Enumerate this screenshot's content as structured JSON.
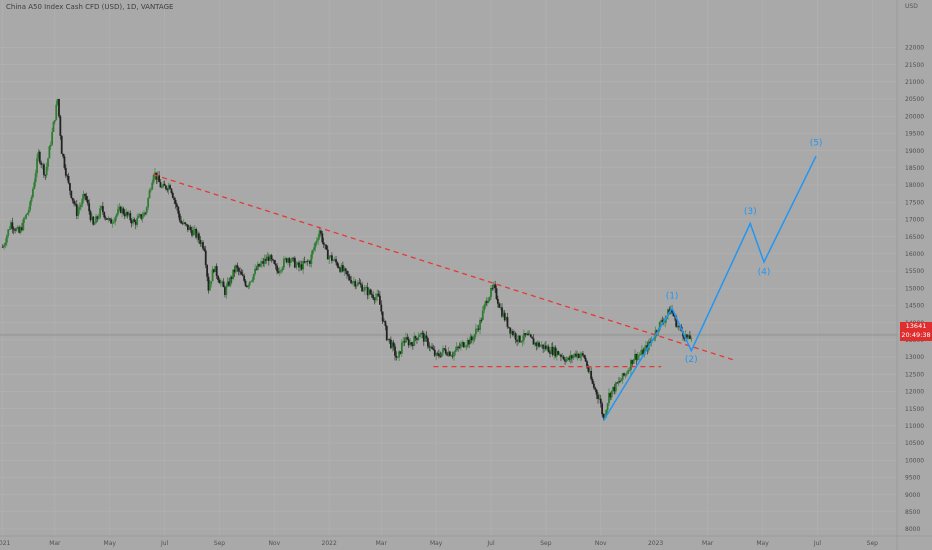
{
  "title": "China A50 Index Cash CFD (USD), 1D, VANTAGE",
  "currency_label": "USD",
  "price_badge": {
    "price": "13641",
    "countdown": "20:49:38",
    "color": "#e02d2d"
  },
  "colors": {
    "background": "#a9a9a9",
    "up_candle": "#2e7d32",
    "down_candle": "#222222",
    "trendline": "#e53935",
    "elliott": "#2196f3",
    "axis_text": "#505050"
  },
  "chart_data": {
    "type": "line",
    "title": "China A50 Index Cash CFD (USD), 1D, VANTAGE",
    "ylim": [
      7700,
      22500
    ],
    "y_ticks": [
      8000,
      8500,
      9000,
      9500,
      10000,
      10500,
      11000,
      11500,
      12000,
      12500,
      13000,
      13500,
      14000,
      14500,
      15000,
      15500,
      16000,
      16500,
      17000,
      17500,
      18000,
      18500,
      19000,
      19500,
      20000,
      20500,
      21000,
      21500,
      22000
    ],
    "x_ticks": [
      {
        "label": "2021",
        "t": 0
      },
      {
        "label": "Mar",
        "t": 1.9
      },
      {
        "label": "May",
        "t": 3.9
      },
      {
        "label": "Jul",
        "t": 5.9
      },
      {
        "label": "Sep",
        "t": 7.9
      },
      {
        "label": "Nov",
        "t": 9.9
      },
      {
        "label": "2022",
        "t": 11.9
      },
      {
        "label": "Mar",
        "t": 13.8
      },
      {
        "label": "May",
        "t": 15.8
      },
      {
        "label": "Jul",
        "t": 17.8
      },
      {
        "label": "Sep",
        "t": 19.8
      },
      {
        "label": "Nov",
        "t": 21.8
      },
      {
        "label": "2023",
        "t": 23.8
      },
      {
        "label": "Mar",
        "t": 25.7
      },
      {
        "label": "May",
        "t": 27.7
      },
      {
        "label": "Jul",
        "t": 29.7
      },
      {
        "label": "Sep",
        "t": 31.7
      }
    ],
    "price_path": [
      [
        0,
        16200
      ],
      [
        0.3,
        16900
      ],
      [
        0.6,
        16600
      ],
      [
        1.0,
        17400
      ],
      [
        1.3,
        18900
      ],
      [
        1.55,
        18300
      ],
      [
        1.8,
        19500
      ],
      [
        2.0,
        20500
      ],
      [
        2.15,
        19000
      ],
      [
        2.4,
        18000
      ],
      [
        2.7,
        17200
      ],
      [
        3.0,
        17700
      ],
      [
        3.3,
        16800
      ],
      [
        3.6,
        17300
      ],
      [
        3.9,
        16900
      ],
      [
        4.3,
        17300
      ],
      [
        4.8,
        16900
      ],
      [
        5.2,
        17200
      ],
      [
        5.5,
        18400
      ],
      [
        5.8,
        17900
      ],
      [
        6.1,
        18000
      ],
      [
        6.5,
        16900
      ],
      [
        7.0,
        16600
      ],
      [
        7.35,
        16200
      ],
      [
        7.5,
        15000
      ],
      [
        7.7,
        15600
      ],
      [
        8.1,
        14900
      ],
      [
        8.5,
        15600
      ],
      [
        8.9,
        15100
      ],
      [
        9.3,
        15600
      ],
      [
        9.7,
        15900
      ],
      [
        10.0,
        15500
      ],
      [
        10.4,
        15900
      ],
      [
        10.8,
        15600
      ],
      [
        11.2,
        15800
      ],
      [
        11.55,
        16700
      ],
      [
        11.8,
        16000
      ],
      [
        12.2,
        15700
      ],
      [
        12.6,
        15300
      ],
      [
        13.0,
        15100
      ],
      [
        13.3,
        14900
      ],
      [
        13.7,
        14700
      ],
      [
        14.0,
        13600
      ],
      [
        14.2,
        13300
      ],
      [
        14.4,
        12900
      ],
      [
        14.6,
        13500
      ],
      [
        14.9,
        13400
      ],
      [
        15.2,
        13700
      ],
      [
        15.5,
        13400
      ],
      [
        15.8,
        13000
      ],
      [
        16.1,
        13200
      ],
      [
        16.4,
        13100
      ],
      [
        16.8,
        13400
      ],
      [
        17.1,
        13500
      ],
      [
        17.4,
        14000
      ],
      [
        17.65,
        14700
      ],
      [
        17.9,
        15000
      ],
      [
        18.2,
        14300
      ],
      [
        18.5,
        13800
      ],
      [
        18.8,
        13500
      ],
      [
        19.1,
        13600
      ],
      [
        19.4,
        13400
      ],
      [
        19.7,
        13300
      ],
      [
        20.0,
        13200
      ],
      [
        20.3,
        13100
      ],
      [
        20.6,
        12900
      ],
      [
        20.9,
        13100
      ],
      [
        21.2,
        13000
      ],
      [
        21.5,
        12200
      ],
      [
        21.75,
        11800
      ],
      [
        21.9,
        11200
      ],
      [
        22.1,
        11900
      ],
      [
        22.4,
        12200
      ],
      [
        22.7,
        12500
      ],
      [
        23.0,
        13000
      ],
      [
        23.3,
        13100
      ],
      [
        23.6,
        13400
      ],
      [
        23.9,
        13900
      ],
      [
        24.2,
        14200
      ],
      [
        24.35,
        14400
      ],
      [
        24.6,
        13900
      ],
      [
        24.8,
        13700
      ],
      [
        25.0,
        13500
      ],
      [
        25.15,
        13641
      ]
    ],
    "trendlines": [
      {
        "name": "descending-resistance",
        "points": [
          [
            5.5,
            18300
          ],
          [
            26.7,
            12900
          ]
        ]
      },
      {
        "name": "horizontal-support",
        "points": [
          [
            15.7,
            12720
          ],
          [
            24.0,
            12720
          ]
        ]
      }
    ],
    "elliott_path": [
      [
        21.9,
        11150
      ],
      [
        24.4,
        14420
      ],
      [
        25.1,
        13180
      ],
      [
        27.25,
        16880
      ],
      [
        27.75,
        15760
      ],
      [
        29.65,
        18840
      ]
    ],
    "wave_labels": [
      {
        "label": "(1)",
        "t": 24.4,
        "v": 14700
      },
      {
        "label": "(2)",
        "t": 25.1,
        "v": 12850
      },
      {
        "label": "(3)",
        "t": 27.25,
        "v": 17150
      },
      {
        "label": "(4)",
        "t": 27.75,
        "v": 15400
      },
      {
        "label": "(5)",
        "t": 29.65,
        "v": 19150
      }
    ],
    "current_price": 13641
  }
}
